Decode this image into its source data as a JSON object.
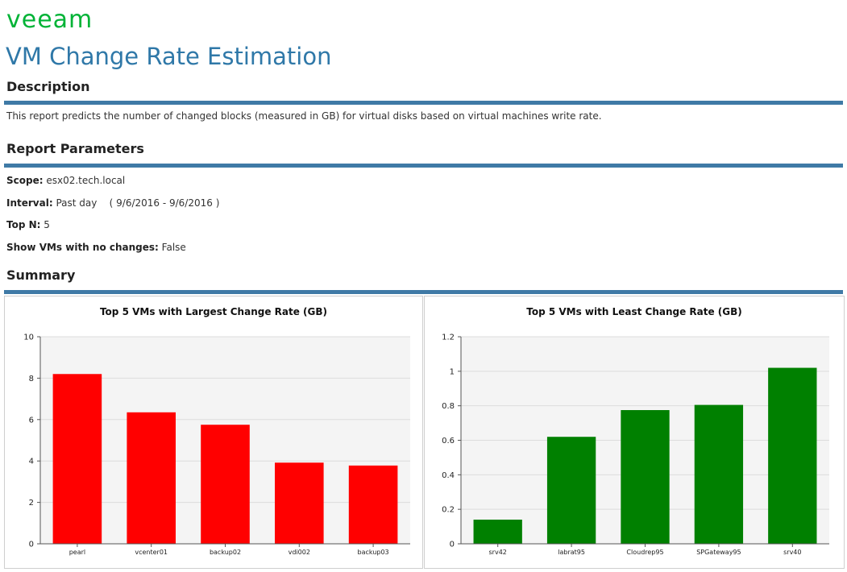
{
  "brand": {
    "logo_text": "veeam"
  },
  "page": {
    "title": "VM Change Rate Estimation"
  },
  "description": {
    "heading": "Description",
    "text": "This report predicts the number of changed blocks (measured in GB) for virtual disks based on virtual machines write rate."
  },
  "parameters": {
    "heading": "Report Parameters",
    "scope_label": "Scope:",
    "scope_value": "esx02.tech.local",
    "interval_label": "Interval:",
    "interval_value": "Past day",
    "interval_range": "( 9/6/2016 - 9/6/2016 )",
    "topn_label": "Top N:",
    "topn_value": "5",
    "show_label": "Show VMs with no changes:",
    "show_value": "False"
  },
  "summary": {
    "heading": "Summary"
  },
  "colors": {
    "accent": "#3f7aa6",
    "brand": "#00b336",
    "largest_bar": "#ff0000",
    "least_bar": "#008000",
    "plot_bg": "#f4f4f4",
    "grid": "#dcdcdc"
  },
  "chart_data": [
    {
      "type": "bar",
      "title": "Top 5 VMs with Largest Change Rate (GB)",
      "xlabel": "",
      "ylabel": "",
      "categories": [
        "pearl",
        "vcenter01",
        "backup02",
        "vdi002",
        "backup03"
      ],
      "values": [
        8.2,
        6.35,
        5.75,
        3.92,
        3.78
      ],
      "ylim": [
        0,
        10
      ],
      "yticks": [
        0,
        2,
        4,
        6,
        8,
        10
      ],
      "ytick_labels": [
        "0",
        "2",
        "4",
        "6",
        "8",
        "10"
      ],
      "grid": true,
      "color": "#ff0000"
    },
    {
      "type": "bar",
      "title": "Top 5 VMs with Least Change Rate (GB)",
      "xlabel": "",
      "ylabel": "",
      "categories": [
        "srv42",
        "labrat95",
        "Cloudrep95",
        "SPGateway95",
        "srv40"
      ],
      "values": [
        0.14,
        0.62,
        0.775,
        0.805,
        1.02
      ],
      "ylim": [
        0,
        1.2
      ],
      "yticks": [
        0,
        0.2,
        0.4,
        0.6,
        0.8,
        1,
        1.2
      ],
      "ytick_labels": [
        "0",
        "0.2",
        "0.4",
        "0.6",
        "0.8",
        "1",
        "1.2"
      ],
      "grid": true,
      "color": "#008000"
    }
  ]
}
